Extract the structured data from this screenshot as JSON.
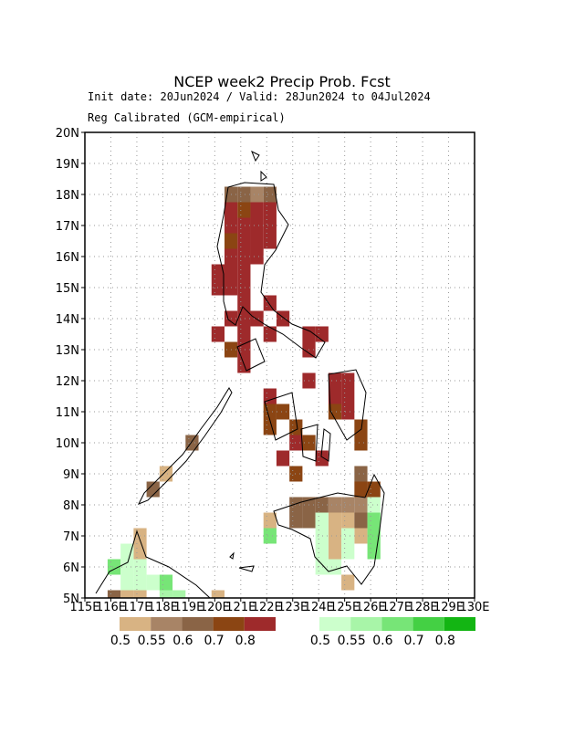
{
  "chart_data": {
    "type": "gridmap",
    "title": "NCEP week2 Precip Prob. Fcst",
    "subtitle": "Init date: 20Jun2024 / Valid: 28Jun2024 to 04Jul2024",
    "subtitle2": "Reg Calibrated (GCM-empirical)",
    "xlim": [
      115,
      130
    ],
    "ylim": [
      5,
      20
    ],
    "xticks": [
      {
        "value": 115,
        "label": "115E"
      },
      {
        "value": 116,
        "label": "116E"
      },
      {
        "value": 117,
        "label": "117E"
      },
      {
        "value": 118,
        "label": "118E"
      },
      {
        "value": 119,
        "label": "119E"
      },
      {
        "value": 120,
        "label": "120E"
      },
      {
        "value": 121,
        "label": "121E"
      },
      {
        "value": 122,
        "label": "122E"
      },
      {
        "value": 123,
        "label": "123E"
      },
      {
        "value": 124,
        "label": "124E"
      },
      {
        "value": 125,
        "label": "125E"
      },
      {
        "value": 126,
        "label": "126E"
      },
      {
        "value": 127,
        "label": "127E"
      },
      {
        "value": 128,
        "label": "128E"
      },
      {
        "value": 129,
        "label": "129E"
      },
      {
        "value": 130,
        "label": "130E"
      }
    ],
    "yticks": [
      {
        "value": 5,
        "label": "5N"
      },
      {
        "value": 6,
        "label": "6N"
      },
      {
        "value": 7,
        "label": "7N"
      },
      {
        "value": 8,
        "label": "8N"
      },
      {
        "value": 9,
        "label": "9N"
      },
      {
        "value": 10,
        "label": "10N"
      },
      {
        "value": 11,
        "label": "11N"
      },
      {
        "value": 12,
        "label": "12N"
      },
      {
        "value": 13,
        "label": "13N"
      },
      {
        "value": 14,
        "label": "14N"
      },
      {
        "value": 15,
        "label": "15N"
      },
      {
        "value": 16,
        "label": "16N"
      },
      {
        "value": 17,
        "label": "17N"
      },
      {
        "value": 18,
        "label": "18N"
      },
      {
        "value": 19,
        "label": "19N"
      },
      {
        "value": 20,
        "label": "20N"
      }
    ],
    "grid": true,
    "dry_levels": [
      0.5,
      0.55,
      0.6,
      0.7,
      0.8
    ],
    "dry_colors": [
      "#d8b383",
      "#a88466",
      "#8a6446",
      "#8b4513",
      "#9e2a2b"
    ],
    "wet_levels": [
      0.5,
      0.55,
      0.6,
      0.7,
      0.8
    ],
    "wet_colors": [
      "#ccffcc",
      "#a8f5a8",
      "#77e577",
      "#44d044",
      "#13b513"
    ],
    "dry_cells": [
      [
        120.625,
        18,
        0.6
      ],
      [
        121.125,
        18,
        0.6
      ],
      [
        121.625,
        18,
        0.55
      ],
      [
        122.125,
        18,
        0.6
      ],
      [
        120.625,
        17.5,
        0.8
      ],
      [
        121.125,
        17.5,
        0.7
      ],
      [
        121.625,
        17.5,
        0.8
      ],
      [
        122.125,
        17.5,
        0.8
      ],
      [
        120.625,
        17,
        0.8
      ],
      [
        121.125,
        17,
        0.8
      ],
      [
        121.625,
        17,
        0.8
      ],
      [
        122.125,
        17,
        0.8
      ],
      [
        120.625,
        16.5,
        0.7
      ],
      [
        121.125,
        16.5,
        0.8
      ],
      [
        121.625,
        16.5,
        0.8
      ],
      [
        122.125,
        16.5,
        0.8
      ],
      [
        120.625,
        16,
        0.8
      ],
      [
        121.125,
        16,
        0.8
      ],
      [
        121.625,
        16,
        0.8
      ],
      [
        120.125,
        15.5,
        0.8
      ],
      [
        120.625,
        15.5,
        0.8
      ],
      [
        121.125,
        15.5,
        0.8
      ],
      [
        120.125,
        15,
        0.8
      ],
      [
        120.625,
        15,
        0.8
      ],
      [
        121.125,
        15,
        0.8
      ],
      [
        121.125,
        14.5,
        0.8
      ],
      [
        122.125,
        14.5,
        0.8
      ],
      [
        120.625,
        14,
        0.8
      ],
      [
        121.125,
        14,
        0.8
      ],
      [
        121.625,
        14,
        0.8
      ],
      [
        122.625,
        14,
        0.8
      ],
      [
        120.125,
        13.5,
        0.8
      ],
      [
        121.125,
        13.5,
        0.8
      ],
      [
        122.125,
        13.5,
        0.8
      ],
      [
        123.625,
        13.5,
        0.8
      ],
      [
        124.125,
        13.5,
        0.8
      ],
      [
        120.625,
        13,
        0.7
      ],
      [
        121.125,
        13,
        0.8
      ],
      [
        123.625,
        13,
        0.8
      ],
      [
        121.125,
        12.5,
        0.8
      ],
      [
        123.625,
        12,
        0.8
      ],
      [
        124.625,
        12,
        0.8
      ],
      [
        125.125,
        12,
        0.8
      ],
      [
        122.125,
        11.5,
        0.8
      ],
      [
        124.625,
        11.5,
        0.8
      ],
      [
        125.125,
        11.5,
        0.8
      ],
      [
        122.125,
        11,
        0.7
      ],
      [
        122.625,
        11,
        0.7
      ],
      [
        124.625,
        11,
        0.7
      ],
      [
        125.125,
        11,
        0.8
      ],
      [
        122.125,
        10.5,
        0.7
      ],
      [
        123.125,
        10.5,
        0.7
      ],
      [
        125.625,
        10.5,
        0.7
      ],
      [
        119.125,
        10,
        0.6
      ],
      [
        123.125,
        10,
        0.8
      ],
      [
        123.625,
        10,
        0.7
      ],
      [
        125.625,
        10,
        0.7
      ],
      [
        122.625,
        9.5,
        0.8
      ],
      [
        124.125,
        9.5,
        0.8
      ],
      [
        118.125,
        9,
        0.5
      ],
      [
        123.125,
        9,
        0.7
      ],
      [
        125.625,
        9,
        0.6
      ],
      [
        117.625,
        8.5,
        0.6
      ],
      [
        125.625,
        8.5,
        0.7
      ],
      [
        126.125,
        8.5,
        0.7
      ],
      [
        123.125,
        8,
        0.6
      ],
      [
        123.625,
        8,
        0.6
      ],
      [
        124.125,
        8,
        0.6
      ],
      [
        124.625,
        8,
        0.55
      ],
      [
        125.125,
        8,
        0.55
      ],
      [
        125.625,
        8,
        0.55
      ],
      [
        122.125,
        7.5,
        0.5
      ],
      [
        123.125,
        7.5,
        0.6
      ],
      [
        123.625,
        7.5,
        0.6
      ],
      [
        124.625,
        7.5,
        0.5
      ],
      [
        125.125,
        7.5,
        0.5
      ],
      [
        125.625,
        7.5,
        0.6
      ],
      [
        117.125,
        7,
        0.5
      ],
      [
        124.625,
        7,
        0.5
      ],
      [
        125.625,
        7,
        0.5
      ],
      [
        117.125,
        6.5,
        0.5
      ],
      [
        124.625,
        6.5,
        0.5
      ],
      [
        125.125,
        5.5,
        0.5
      ],
      [
        116.125,
        5,
        0.6
      ],
      [
        116.625,
        5,
        0.5
      ],
      [
        117.125,
        5,
        0.5
      ],
      [
        120.125,
        5,
        0.5
      ]
    ],
    "wet_cells": [
      [
        126.125,
        8,
        0.5
      ],
      [
        124.125,
        7.5,
        0.5
      ],
      [
        126.125,
        7.5,
        0.6
      ],
      [
        122.125,
        7,
        0.6
      ],
      [
        124.125,
        7,
        0.5
      ],
      [
        125.125,
        7,
        0.5
      ],
      [
        126.125,
        7,
        0.6
      ],
      [
        116.625,
        6.5,
        0.5
      ],
      [
        124.125,
        6.5,
        0.5
      ],
      [
        125.125,
        6.5,
        0.5
      ],
      [
        126.125,
        6.5,
        0.6
      ],
      [
        116.125,
        6,
        0.6
      ],
      [
        116.625,
        6,
        0.5
      ],
      [
        117.125,
        6,
        0.5
      ],
      [
        124.125,
        6,
        0.5
      ],
      [
        124.625,
        6,
        0.5
      ],
      [
        116.625,
        5.5,
        0.5
      ],
      [
        117.125,
        5.5,
        0.5
      ],
      [
        117.625,
        5.5,
        0.5
      ],
      [
        118.125,
        5.5,
        0.6
      ],
      [
        118.125,
        5,
        0.55
      ],
      [
        118.625,
        5,
        0.55
      ]
    ]
  }
}
